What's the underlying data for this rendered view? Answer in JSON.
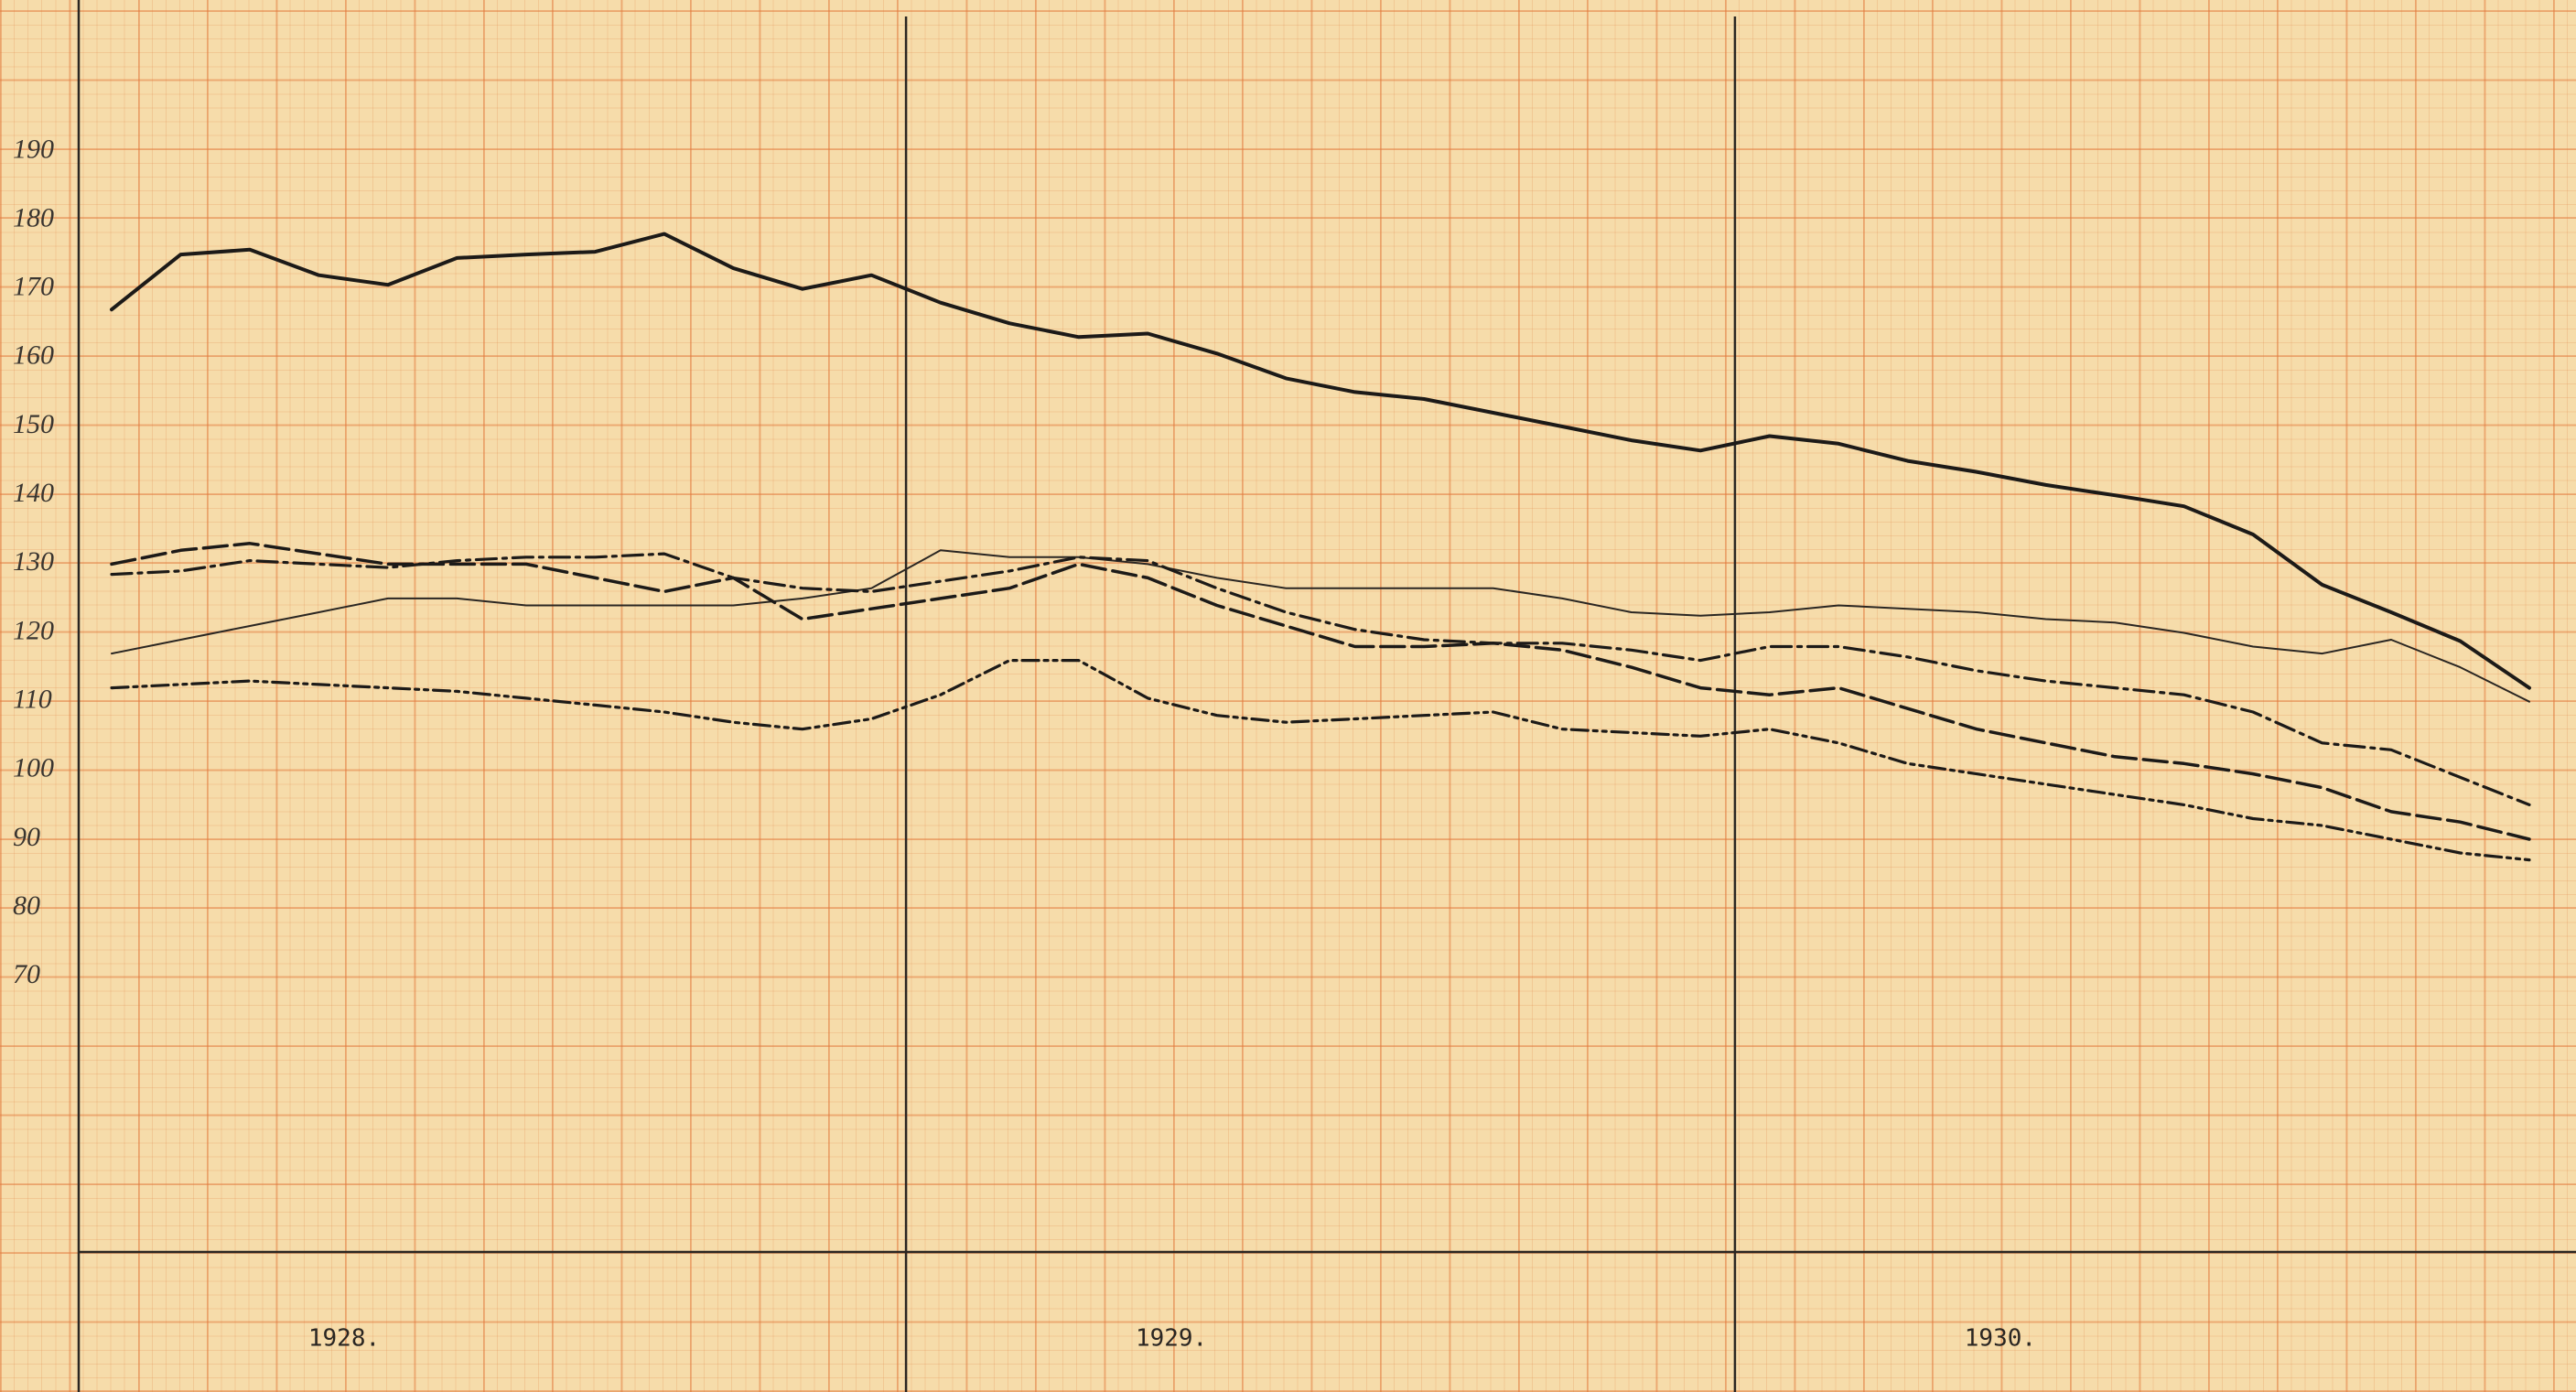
{
  "chart_data": {
    "type": "line",
    "categories": [
      null,
      null,
      null,
      null,
      null,
      null,
      null,
      null,
      null,
      null,
      null,
      null,
      null,
      null,
      null,
      null,
      null,
      null,
      null,
      null,
      null,
      null,
      null,
      null,
      null,
      null,
      null,
      null,
      null,
      null,
      null,
      null,
      null,
      null,
      null,
      null
    ],
    "year_labels": [
      "1928.",
      "1929.",
      "1930."
    ],
    "ylim": [
      30,
      212
    ],
    "yticks": [
      70,
      80,
      90,
      100,
      110,
      120,
      130,
      140,
      150,
      160,
      170,
      180,
      190
    ],
    "series": [
      {
        "color": "#1c1a18",
        "style": "thick-solid",
        "values": [
          167,
          175,
          175.7,
          172,
          170.6,
          174.5,
          175,
          175.4,
          178,
          173,
          170,
          172,
          168,
          165,
          163,
          163.5,
          160.6,
          157,
          155,
          154,
          152,
          150,
          148,
          146.5,
          148.6,
          147.5,
          145,
          143.4,
          141.5,
          140,
          138.4,
          134.3,
          127,
          123,
          118.8,
          112
        ]
      },
      {
        "color": "#2a2622",
        "style": "thin-solid",
        "values": [
          117,
          119,
          121,
          123,
          125,
          125,
          124,
          124,
          124,
          124,
          125,
          126.5,
          132,
          131,
          131,
          130,
          128,
          126.5,
          126.5,
          126.5,
          126.5,
          125,
          123,
          122.5,
          123,
          124,
          123.5,
          123,
          122,
          121.5,
          120,
          118,
          117,
          119,
          115,
          110
        ]
      },
      {
        "color": "#1c1a18",
        "style": "dash",
        "values": [
          130,
          132,
          133,
          131.5,
          130,
          130,
          130,
          128,
          126,
          128,
          122,
          123.5,
          125,
          126.5,
          130,
          128,
          124,
          121,
          118,
          118,
          118.5,
          117.5,
          115,
          112,
          111,
          112,
          109,
          106,
          104,
          102,
          101,
          99.5,
          97.5,
          94,
          92.5,
          90
        ]
      },
      {
        "color": "#1c1a18",
        "style": "dash-dot",
        "values": [
          128.5,
          129,
          130.5,
          130,
          129.5,
          130.5,
          131,
          131,
          131.5,
          128,
          126.5,
          126,
          127.5,
          129,
          131,
          130.5,
          126.5,
          123,
          120.5,
          119,
          118.5,
          118.5,
          117.5,
          116,
          118,
          118,
          116.5,
          114.5,
          113,
          112,
          111,
          108.5,
          104,
          103,
          99,
          95
        ]
      },
      {
        "color": "#1c1a18",
        "style": "dash-dot-dot",
        "values": [
          112,
          112.5,
          113,
          112.5,
          112,
          111.5,
          110.5,
          109.5,
          108.5,
          107,
          106,
          107.5,
          111,
          116,
          116,
          110.5,
          108,
          107,
          107.5,
          108,
          108.5,
          106,
          105.5,
          105,
          106,
          104,
          101,
          99.5,
          98,
          96.5,
          95,
          93,
          92,
          90,
          88,
          87
        ]
      }
    ]
  }
}
